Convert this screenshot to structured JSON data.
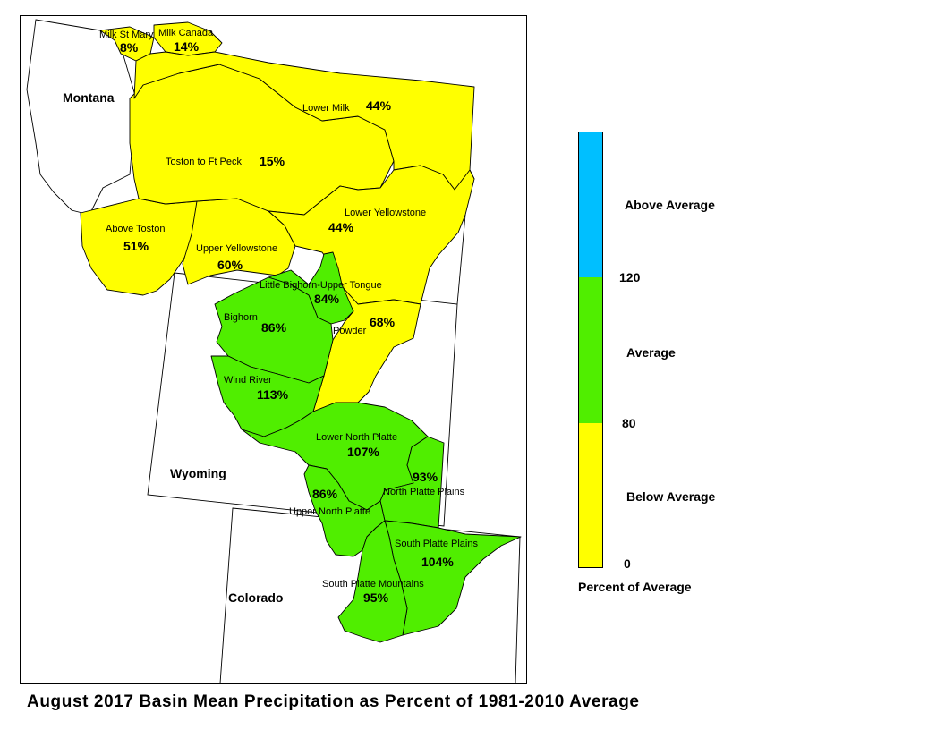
{
  "title": "August 2017 Basin Mean Precipitation as Percent of 1981-2010 Average",
  "map": {
    "states": [
      {
        "key": "montana",
        "name": "Montana"
      },
      {
        "key": "wyoming",
        "name": "Wyoming"
      },
      {
        "key": "colorado",
        "name": "Colorado"
      }
    ],
    "basins": [
      {
        "key": "milk-st-mary",
        "name": "Milk St Mary",
        "percent": "8%",
        "category": "Below Average"
      },
      {
        "key": "milk-canada",
        "name": "Milk Canada",
        "percent": "14%",
        "category": "Below Average"
      },
      {
        "key": "lower-milk",
        "name": "Lower Milk",
        "percent": "44%",
        "category": "Below Average"
      },
      {
        "key": "toston-to-ft-peck",
        "name": "Toston to Ft Peck",
        "percent": "15%",
        "category": "Below Average"
      },
      {
        "key": "above-toston",
        "name": "Above Toston",
        "percent": "51%",
        "category": "Below Average"
      },
      {
        "key": "lower-yellowstone",
        "name": "Lower Yellowstone",
        "percent": "44%",
        "category": "Below Average"
      },
      {
        "key": "upper-yellowstone",
        "name": "Upper Yellowstone",
        "percent": "60%",
        "category": "Below Average"
      },
      {
        "key": "little-bighorn-upper-tongue",
        "name": "Little Bighorn-Upper Tongue",
        "percent": "84%",
        "category": "Average"
      },
      {
        "key": "bighorn",
        "name": "Bighorn",
        "percent": "86%",
        "category": "Average"
      },
      {
        "key": "powder",
        "name": "Powder",
        "percent": "68%",
        "category": "Below Average"
      },
      {
        "key": "wind-river",
        "name": "Wind River",
        "percent": "113%",
        "category": "Average"
      },
      {
        "key": "lower-north-platte",
        "name": "Lower North Platte",
        "percent": "107%",
        "category": "Average"
      },
      {
        "key": "north-platte-plains",
        "name": "North Platte Plains",
        "percent": "93%",
        "category": "Average"
      },
      {
        "key": "upper-north-platte",
        "name": "Upper North Platte",
        "percent": "86%",
        "category": "Average"
      },
      {
        "key": "south-platte-plains",
        "name": "South Platte Plains",
        "percent": "104%",
        "category": "Average"
      },
      {
        "key": "south-platte-mountains",
        "name": "South Platte Mountains",
        "percent": "95%",
        "category": "Average"
      }
    ]
  },
  "legend": {
    "title": "Percent of Average",
    "classes": [
      {
        "label": "Above Average",
        "color": "#00BFFF"
      },
      {
        "label": "Average",
        "color": "#50EE00"
      },
      {
        "label": "Below Average",
        "color": "#FFFF00"
      }
    ],
    "breaks": [
      "120",
      "80",
      "0"
    ]
  },
  "colors": {
    "below": "#FFFF00",
    "average": "#50EE00",
    "above": "#00BFFF"
  }
}
